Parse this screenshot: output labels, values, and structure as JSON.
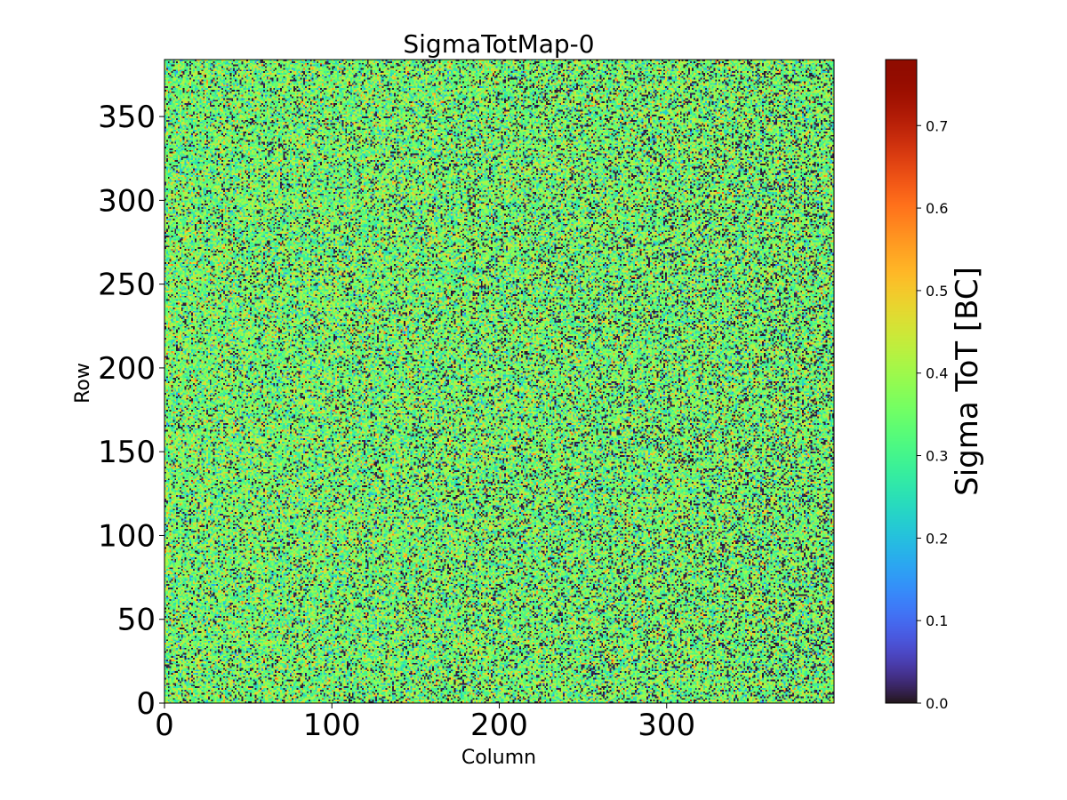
{
  "chart_data": {
    "type": "heatmap",
    "title": "SigmaTotMap-0",
    "xlabel": "Column",
    "ylabel": "Row",
    "xlim": [
      0,
      400
    ],
    "ylim": [
      0,
      384
    ],
    "xticks": [
      0,
      100,
      200,
      300
    ],
    "yticks": [
      0,
      50,
      100,
      150,
      200,
      250,
      300,
      350
    ],
    "colormap": "turbo",
    "colorbar": {
      "label": "Sigma ToT [BC]",
      "range": [
        0.0,
        0.78
      ],
      "ticks": [
        "0.0",
        "0.1",
        "0.2",
        "0.3",
        "0.4",
        "0.5",
        "0.6",
        "0.7"
      ]
    },
    "distribution": {
      "description": "per-pixel noise map",
      "typical_value": 0.35,
      "value_spread": 0.08,
      "dead_pixel_fraction": 0.12,
      "dead_fraction_increase_toward_high_column": 0.08,
      "max_value": 0.78
    }
  }
}
